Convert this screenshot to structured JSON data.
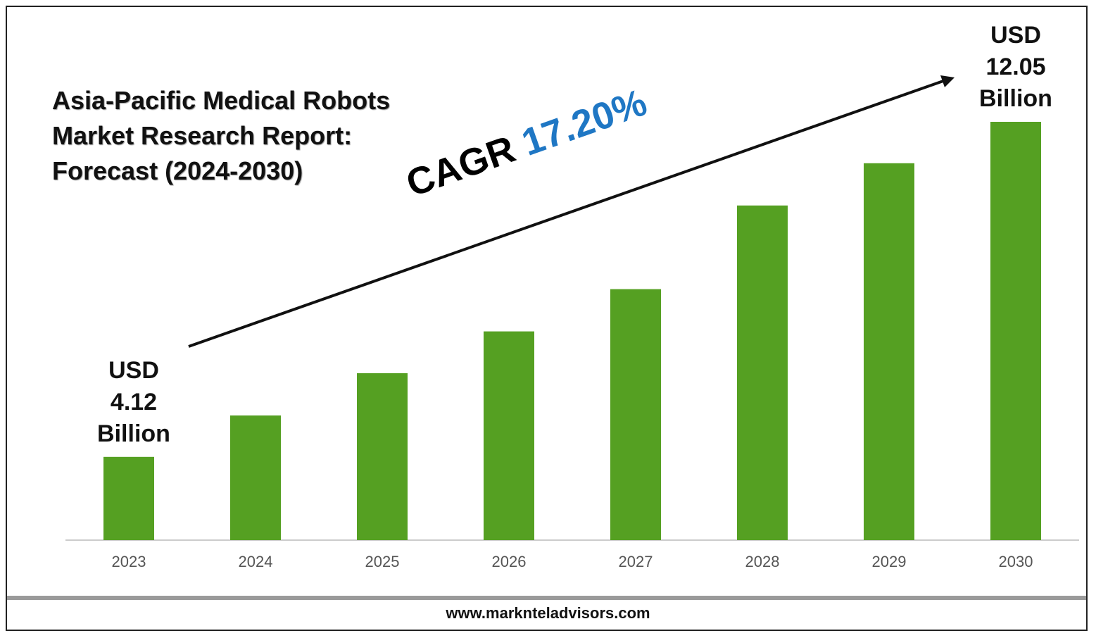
{
  "chart_data": {
    "type": "bar",
    "title": "Asia-Pacific Medical Robots Market Research Report: Forecast (2024-2030)",
    "categories": [
      "2023",
      "2024",
      "2025",
      "2026",
      "2027",
      "2028",
      "2029",
      "2030"
    ],
    "values": [
      4.12,
      5.1,
      6.1,
      7.09,
      8.09,
      10.07,
      11.07,
      12.05
    ],
    "value_labels": [
      "USD 4.12 Billion",
      null,
      null,
      null,
      null,
      null,
      null,
      "USD 12.05 Billion"
    ],
    "color": "#55a022",
    "ylim": [
      2.15,
      13
    ],
    "cagr_label": "CAGR",
    "cagr_value": "17.20%",
    "footer": "www.marknteladvisors.com"
  }
}
